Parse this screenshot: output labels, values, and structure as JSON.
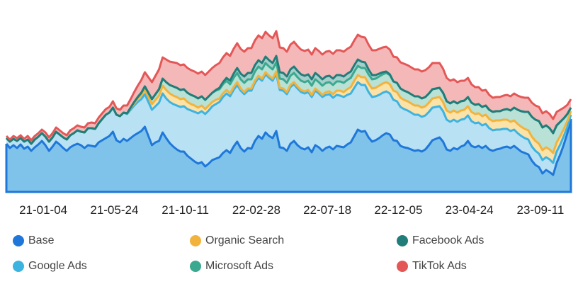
{
  "chart_data": {
    "type": "area",
    "stacked": true,
    "title": "",
    "xlabel": "",
    "ylabel": "",
    "grid": false,
    "legend_position": "bottom",
    "x_start": "2020-10-26",
    "x_interval_weeks": 1,
    "x_tick_labels": [
      "21-01-04",
      "21-05-24",
      "21-10-11",
      "22-02-28",
      "22-07-18",
      "22-12-05",
      "23-04-24",
      "23-09-11"
    ],
    "x_tick_indices": [
      10,
      30,
      50,
      70,
      90,
      110,
      130,
      150
    ],
    "ylim": [
      0,
      255
    ],
    "series": [
      {
        "name": "Base",
        "color": "#1f77d9",
        "fill": "#7fc3ea",
        "values": [
          68,
          62,
          66,
          62,
          67,
          61,
          64,
          58,
          63,
          67,
          72,
          66,
          58,
          64,
          71,
          67,
          62,
          58,
          63,
          66,
          68,
          66,
          62,
          66,
          65,
          64,
          70,
          73,
          76,
          79,
          85,
          73,
          70,
          75,
          72,
          76,
          80,
          83,
          86,
          92,
          79,
          66,
          70,
          72,
          84,
          76,
          69,
          64,
          60,
          57,
          57,
          51,
          47,
          43,
          40,
          42,
          36,
          40,
          45,
          47,
          49,
          55,
          59,
          55,
          64,
          71,
          62,
          57,
          62,
          61,
          72,
          79,
          75,
          84,
          79,
          76,
          86,
          63,
          62,
          58,
          68,
          72,
          66,
          62,
          60,
          63,
          56,
          66,
          63,
          58,
          62,
          64,
          60,
          65,
          64,
          63,
          67,
          70,
          79,
          88,
          85,
          86,
          77,
          71,
          73,
          76,
          80,
          83,
          81,
          73,
          72,
          65,
          63,
          62,
          60,
          58,
          59,
          57,
          60,
          66,
          73,
          75,
          77,
          71,
          60,
          58,
          62,
          60,
          64,
          66,
          72,
          65,
          63,
          65,
          62,
          65,
          60,
          58,
          60,
          61,
          63,
          64,
          62,
          65,
          61,
          57,
          55,
          53,
          44,
          38,
          35,
          26,
          31,
          28,
          24,
          41,
          53,
          67,
          83,
          103
        ]
      },
      {
        "name": "Google Ads",
        "color": "#3db3e0",
        "fill": "#b8e1f3",
        "values": [
          8,
          9,
          9,
          10,
          9,
          10,
          10,
          10,
          11,
          11,
          11,
          12,
          13,
          13,
          14,
          14,
          15,
          16,
          17,
          17,
          19,
          19,
          22,
          24,
          25,
          25,
          27,
          30,
          33,
          33,
          34,
          36,
          37,
          37,
          38,
          40,
          42,
          44,
          45,
          46,
          48,
          50,
          51,
          54,
          55,
          56,
          58,
          60,
          62,
          63,
          64,
          66,
          68,
          70,
          71,
          72,
          74,
          75,
          76,
          77,
          78,
          79,
          80,
          80,
          80,
          80,
          81,
          81,
          81,
          82,
          82,
          82,
          82,
          82,
          82,
          81,
          81,
          81,
          81,
          80,
          80,
          80,
          80,
          79,
          79,
          78,
          78,
          77,
          76,
          76,
          75,
          74,
          73,
          72,
          72,
          71,
          70,
          69,
          68,
          67,
          66,
          65,
          64,
          63,
          62,
          61,
          60,
          59,
          58,
          57,
          56,
          55,
          54,
          53,
          52,
          51,
          50,
          49,
          48,
          47,
          46,
          45,
          44,
          43,
          42,
          41,
          40,
          39,
          38,
          37,
          36,
          35,
          34,
          33,
          32,
          31,
          30,
          29,
          28,
          27,
          26,
          25,
          24,
          23,
          22,
          22,
          21,
          21,
          20,
          20,
          19,
          19,
          18,
          18,
          17,
          16,
          14,
          12,
          9,
          6
        ]
      },
      {
        "name": "Organic Search",
        "color": "#f2b33d",
        "fill": "#fbe2a8",
        "values": [
          0,
          0,
          0,
          0,
          0,
          0,
          0,
          0,
          0,
          0,
          0,
          0,
          0,
          0,
          0,
          0,
          0,
          0,
          0,
          0,
          0,
          0,
          0,
          0,
          0,
          0,
          0,
          0,
          0,
          0,
          0,
          0,
          0,
          0,
          1,
          2,
          3,
          4,
          5,
          6,
          7,
          8,
          9,
          10,
          11,
          12,
          12,
          12,
          12,
          11,
          11,
          10,
          9,
          9,
          8,
          8,
          7,
          7,
          6,
          6,
          5,
          5,
          5,
          4,
          4,
          4,
          3,
          3,
          3,
          3,
          3,
          3,
          3,
          3,
          3,
          3,
          3,
          3,
          3,
          3,
          3,
          3,
          3,
          3,
          3,
          3,
          3,
          3,
          3,
          3,
          4,
          4,
          5,
          6,
          7,
          7,
          8,
          9,
          10,
          10,
          11,
          11,
          12,
          12,
          12,
          13,
          13,
          13,
          13,
          13,
          13,
          13,
          13,
          13,
          13,
          13,
          13,
          13,
          13,
          13,
          13,
          13,
          13,
          13,
          13,
          13,
          13,
          13,
          13,
          13,
          13,
          13,
          13,
          13,
          13,
          13,
          13,
          13,
          13,
          13,
          13,
          13,
          13,
          13,
          13,
          13,
          13,
          13,
          14,
          14,
          14,
          14,
          14,
          14,
          14,
          13,
          12,
          10,
          8,
          5
        ]
      },
      {
        "name": "Microsoft Ads",
        "color": "#3aa98f",
        "fill": "#b9e1d5",
        "values": [
          0,
          0,
          0,
          0,
          0,
          0,
          0,
          0,
          0,
          0,
          0,
          0,
          0,
          0,
          0,
          0,
          0,
          0,
          0,
          0,
          0,
          0,
          0,
          0,
          0,
          0,
          0,
          0,
          0,
          0,
          0,
          0,
          0,
          0,
          0,
          1,
          2,
          3,
          4,
          5,
          6,
          7,
          8,
          9,
          10,
          11,
          12,
          13,
          13,
          13,
          13,
          13,
          13,
          13,
          13,
          13,
          13,
          13,
          13,
          13,
          13,
          13,
          13,
          13,
          13,
          13,
          13,
          13,
          13,
          13,
          13,
          13,
          13,
          13,
          13,
          13,
          13,
          13,
          13,
          13,
          13,
          13,
          13,
          13,
          13,
          13,
          13,
          13,
          13,
          13,
          13,
          13,
          13,
          13,
          13,
          13,
          13,
          13,
          13,
          13,
          13,
          13,
          13,
          13,
          13,
          13,
          13,
          13,
          13,
          13,
          13,
          13,
          13,
          13,
          13,
          13,
          13,
          13,
          13,
          13,
          13,
          13,
          13,
          13,
          13,
          13,
          13,
          13,
          13,
          13,
          13,
          13,
          13,
          13,
          13,
          13,
          13,
          13,
          13,
          13,
          14,
          15,
          16,
          18,
          20,
          22,
          24,
          26,
          28,
          30,
          32,
          32,
          31,
          30,
          28,
          24,
          20,
          15,
          10,
          5
        ]
      },
      {
        "name": "Facebook Ads",
        "color": "#217d7a",
        "fill": "#a6cfcb",
        "values": [
          0,
          0,
          0,
          0,
          0,
          0,
          0,
          0,
          0,
          0,
          0,
          0,
          0,
          0,
          0,
          0,
          0,
          0,
          0,
          0,
          0,
          0,
          0,
          0,
          0,
          0,
          0,
          0,
          0,
          0,
          0,
          0,
          0,
          0,
          0,
          0,
          0,
          0,
          0,
          0,
          0,
          0,
          0,
          0,
          0,
          0,
          0,
          0,
          0,
          0,
          0,
          0,
          0,
          0,
          0,
          0,
          0,
          0,
          0,
          1,
          2,
          3,
          4,
          5,
          6,
          7,
          8,
          9,
          9,
          9,
          9,
          9,
          9,
          9,
          9,
          9,
          9,
          9,
          9,
          9,
          9,
          9,
          9,
          9,
          9,
          9,
          9,
          9,
          9,
          9,
          9,
          9,
          9,
          9,
          9,
          9,
          9,
          9,
          9,
          9,
          9,
          8,
          7,
          6,
          5,
          4,
          3,
          2,
          1,
          0,
          0,
          0,
          0,
          0,
          0,
          0,
          0,
          0,
          0,
          0,
          0,
          0,
          0,
          0,
          0,
          0,
          0,
          0,
          0,
          0,
          0,
          0,
          0,
          0,
          0,
          0,
          0,
          0,
          0,
          0,
          0,
          0,
          0,
          0,
          0,
          0,
          0,
          0,
          0,
          0,
          0,
          0,
          0,
          0,
          0,
          0,
          0,
          0,
          0,
          0
        ]
      },
      {
        "name": "TikTok Ads",
        "color": "#e45757",
        "fill": "#f5b8b8",
        "values": [
          3,
          3,
          4,
          4,
          4,
          4,
          5,
          5,
          5,
          5,
          5,
          6,
          6,
          6,
          6,
          6,
          6,
          6,
          7,
          7,
          7,
          7,
          7,
          7,
          8,
          8,
          8,
          8,
          8,
          8,
          9,
          9,
          9,
          10,
          11,
          12,
          14,
          16,
          18,
          20,
          22,
          24,
          26,
          28,
          30,
          32,
          33,
          34,
          35,
          35,
          35,
          35,
          35,
          35,
          35,
          35,
          35,
          35,
          35,
          35,
          35,
          35,
          35,
          35,
          35,
          35,
          35,
          35,
          35,
          35,
          35,
          35,
          35,
          35,
          35,
          35,
          35,
          35,
          35,
          35,
          35,
          35,
          35,
          35,
          35,
          35,
          35,
          35,
          35,
          35,
          35,
          35,
          35,
          35,
          35,
          35,
          35,
          35,
          35,
          35,
          35,
          35,
          35,
          35,
          35,
          35,
          35,
          35,
          35,
          35,
          36,
          37,
          38,
          38,
          38,
          38,
          38,
          38,
          38,
          37,
          37,
          36,
          35,
          34,
          33,
          32,
          31,
          30,
          29,
          28,
          27,
          26,
          25,
          24,
          23,
          22,
          21,
          20,
          20,
          20,
          20,
          20,
          20,
          20,
          20,
          20,
          20,
          20,
          20,
          20,
          20,
          20,
          20,
          20,
          20,
          19,
          17,
          15,
          13,
          12
        ]
      }
    ]
  },
  "legend": {
    "items": [
      {
        "label": "Base",
        "color": "#1f77d9"
      },
      {
        "label": "Organic Search",
        "color": "#f2b33d"
      },
      {
        "label": "Facebook Ads",
        "color": "#217d7a"
      },
      {
        "label": "Google Ads",
        "color": "#3db3e0"
      },
      {
        "label": "Microsoft Ads",
        "color": "#3aa98f"
      },
      {
        "label": "TikTok Ads",
        "color": "#e45757"
      }
    ]
  }
}
